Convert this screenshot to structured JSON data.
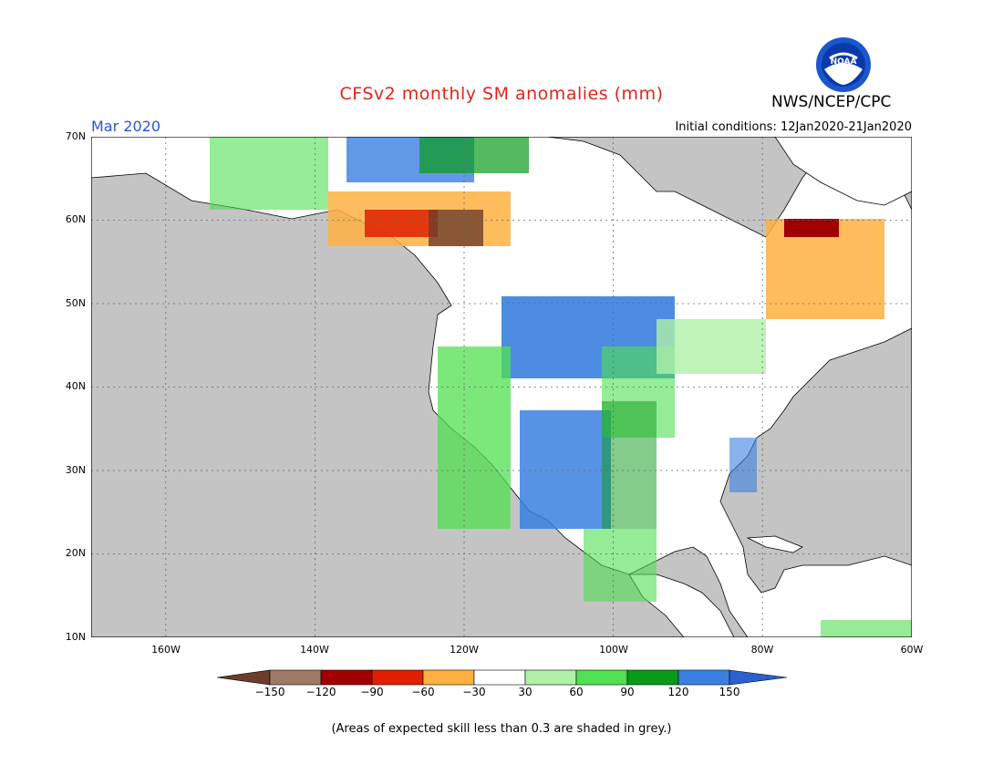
{
  "title": "CFSv2 monthly SM anomalies (mm)",
  "agency": "NWS/NCEP/CPC",
  "logo_text": "NOAA",
  "valid_month": "Mar 2020",
  "initial_conditions": "Initial conditions: 12Jan2020-21Jan2020",
  "footnote": "(Areas of expected skill less than 0.3 are shaded in grey.)",
  "map": {
    "lon_range": [
      -170,
      -60
    ],
    "lat_range": [
      10,
      70
    ],
    "lat_labels": [
      "70N",
      "60N",
      "50N",
      "40N",
      "30N",
      "20N",
      "10N"
    ],
    "lon_labels": [
      "160W",
      "140W",
      "120W",
      "100W",
      "80W",
      "60W"
    ],
    "grid": true,
    "colors": {
      "ocean": "#c4c4c4",
      "land_neutral": "#ffffff",
      "grid": "#666666",
      "coast": "#000000"
    }
  },
  "colorbar": {
    "labels": [
      "−150",
      "−120",
      "−90",
      "−60",
      "−30",
      "30",
      "60",
      "90",
      "120",
      "150"
    ],
    "colors": [
      "#6b3d2a",
      "#a07868",
      "#a00000",
      "#e02000",
      "#ff4f0f",
      "#ffb040",
      "#ffffff",
      "#b0f0a8",
      "#50e050",
      "#0a9a1a",
      "#3a80e0",
      "#2a60d0"
    ]
  }
}
